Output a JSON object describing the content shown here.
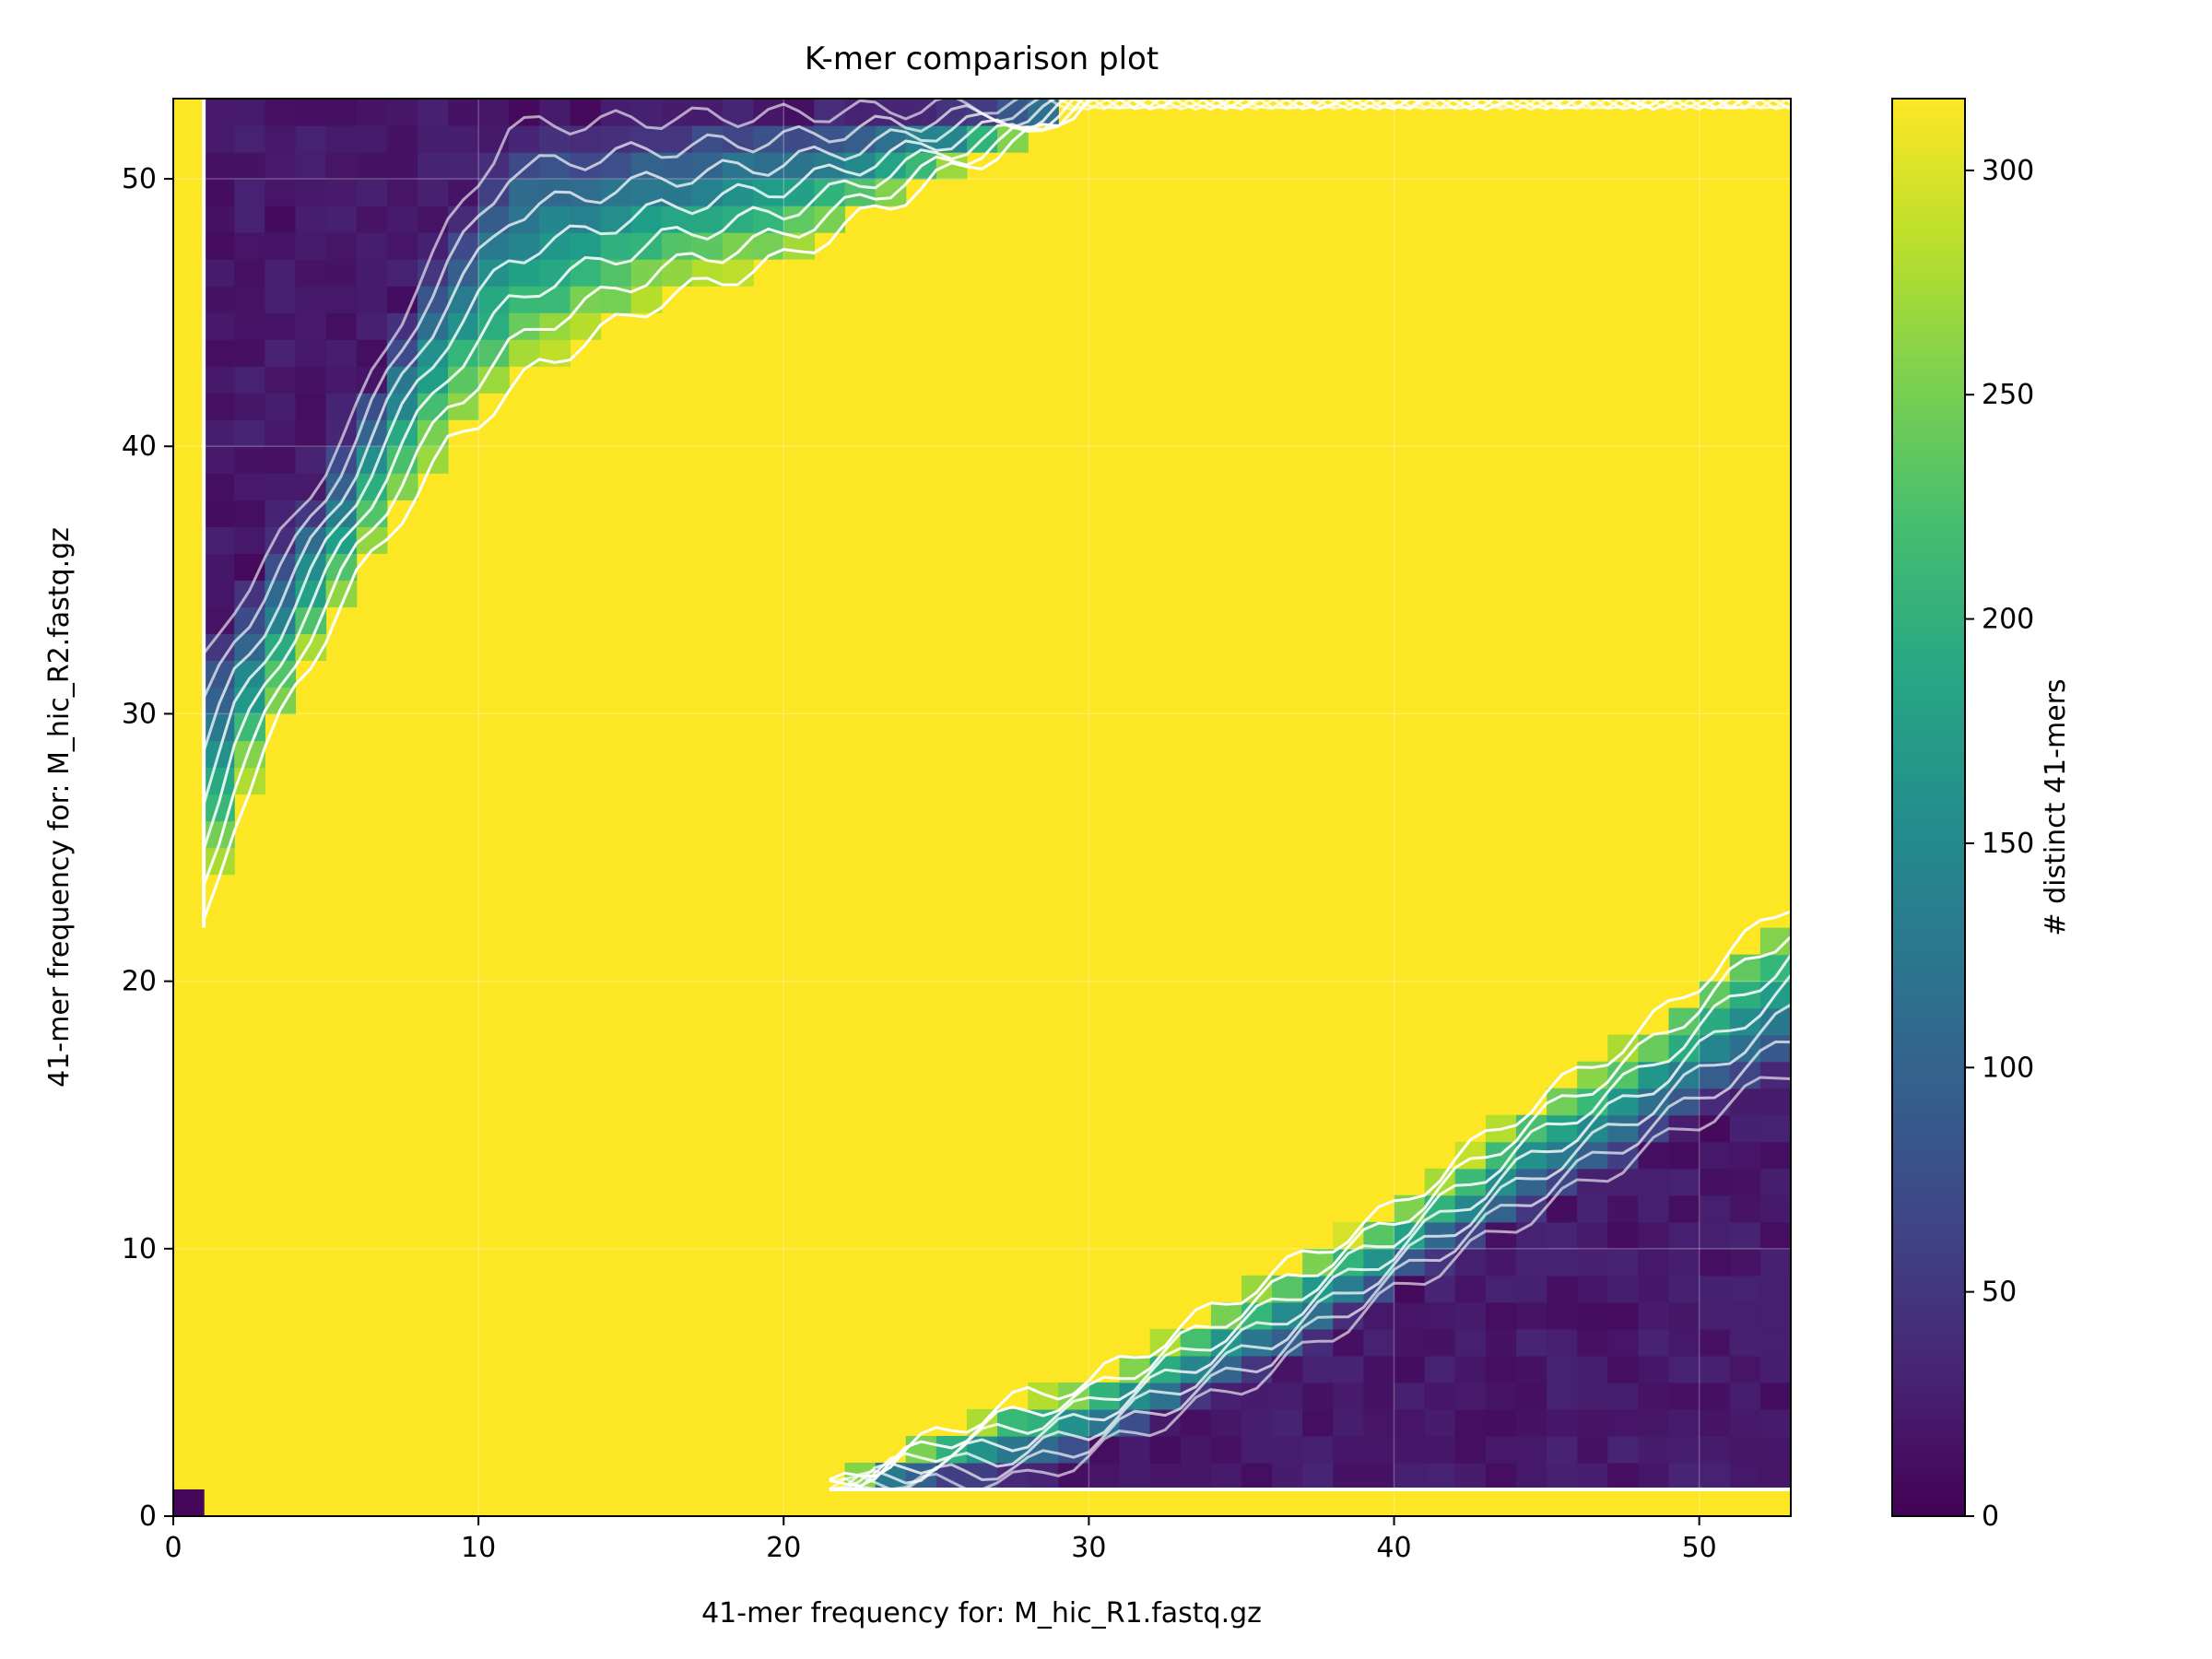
{
  "chart_data": {
    "type": "heatmap",
    "title": "K-mer comparison plot",
    "xlabel": "41-mer frequency for: M_hic_R1.fastq.gz",
    "ylabel": "41-mer frequency for: M_hic_R2.fastq.gz",
    "xlim": [
      0,
      53
    ],
    "ylim": [
      0,
      53
    ],
    "xticks": [
      0,
      10,
      20,
      30,
      40,
      50
    ],
    "yticks": [
      0,
      10,
      20,
      30,
      40,
      50
    ],
    "grid": true,
    "colormap": "viridis",
    "colorbar": {
      "label": "# distinct 41-mers",
      "range": [
        0,
        316
      ],
      "ticks": [
        0,
        50,
        100,
        150,
        200,
        250,
        300
      ]
    },
    "contours": true,
    "cells": {
      "saturated_value": 316,
      "cell_zero_zero_value": 5,
      "upper_band": {
        "x_min": 1,
        "lower_edge_at_x": [
          [
            1,
            22
          ],
          [
            2,
            26
          ],
          [
            4,
            31
          ],
          [
            6,
            35
          ],
          [
            9,
            40
          ],
          [
            12,
            43
          ],
          [
            16,
            45.5
          ],
          [
            20,
            47
          ],
          [
            25,
            50
          ],
          [
            28,
            51.5
          ],
          [
            30,
            53
          ]
        ],
        "dark_to_x": [
          [
            1,
            33
          ],
          [
            2,
            35
          ],
          [
            4,
            38
          ],
          [
            6,
            42
          ],
          [
            8,
            47
          ],
          [
            10,
            51
          ],
          [
            11,
            53
          ]
        ]
      },
      "lower_band": {
        "y_min": 1,
        "upper_edge_at_x": [
          [
            21.5,
            1
          ],
          [
            25,
            3
          ],
          [
            28,
            4.5
          ],
          [
            30,
            5
          ],
          [
            33,
            7
          ],
          [
            36,
            9
          ],
          [
            40,
            11.5
          ],
          [
            44,
            15
          ],
          [
            48,
            18
          ],
          [
            53,
            23
          ]
        ],
        "dark_below_at_x": [
          [
            28,
            1
          ],
          [
            32,
            3
          ],
          [
            36,
            5
          ],
          [
            40,
            8
          ],
          [
            44,
            10.5
          ],
          [
            48,
            13
          ],
          [
            53,
            16
          ]
        ]
      }
    }
  }
}
